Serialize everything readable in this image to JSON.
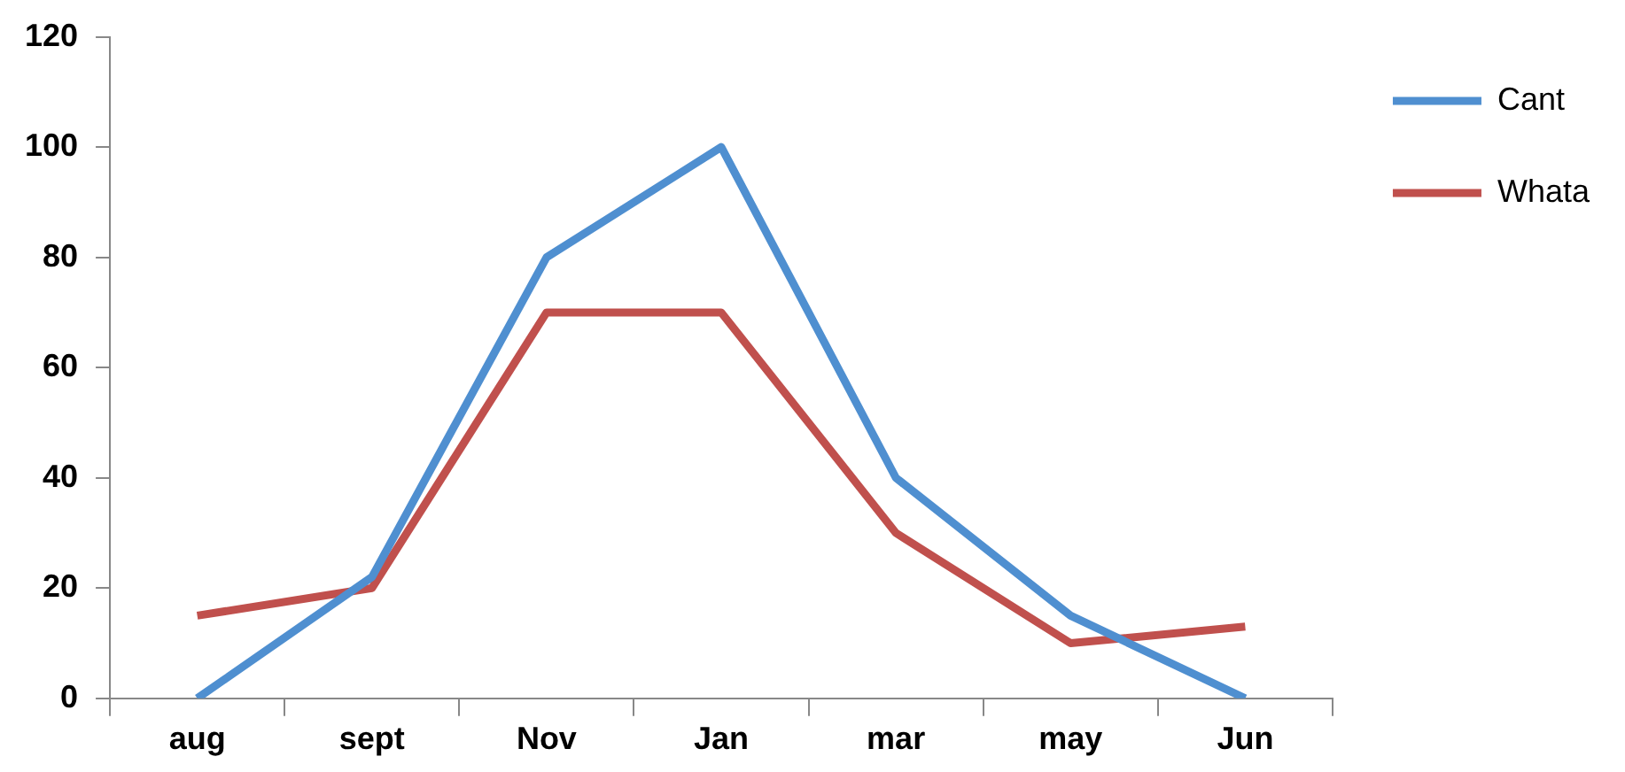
{
  "chart_data": {
    "type": "line",
    "categories": [
      "aug",
      "sept",
      "Nov",
      "Jan",
      "mar",
      "may",
      "Jun"
    ],
    "series": [
      {
        "name": "Cant",
        "color": "#4f8fd0",
        "values": [
          0,
          22,
          80,
          100,
          40,
          15,
          0
        ]
      },
      {
        "name": "Whata",
        "color": "#c0504d",
        "values": [
          15,
          20,
          70,
          70,
          30,
          10,
          13
        ]
      }
    ],
    "ylim": [
      0,
      120
    ],
    "yticks": [
      0,
      20,
      40,
      60,
      80,
      100,
      120
    ],
    "grid": false,
    "legend": "right",
    "marker": "none",
    "line_style": "solid"
  }
}
